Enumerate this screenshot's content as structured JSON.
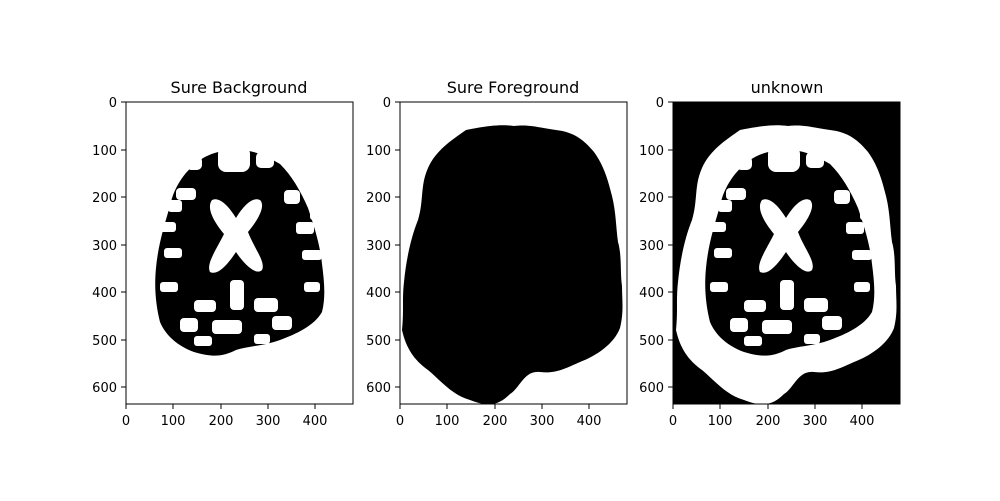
{
  "chart_data": [
    {
      "type": "image",
      "title": "Sure Background",
      "xticks": [
        0,
        100,
        200,
        300,
        400
      ],
      "yticks": [
        0,
        100,
        200,
        300,
        400,
        500,
        600
      ],
      "xlim": [
        0,
        480
      ],
      "ylim": [
        640,
        0
      ],
      "background_color": "#ffffff",
      "mask_color": "#000000",
      "description": "binary mask: white background with black brain region and white internal structures"
    },
    {
      "type": "image",
      "title": "Sure Foreground",
      "xticks": [
        0,
        100,
        200,
        300,
        400
      ],
      "yticks": [
        0,
        100,
        200,
        300,
        400,
        500,
        600
      ],
      "xlim": [
        0,
        480
      ],
      "ylim": [
        640,
        0
      ],
      "background_color": "#ffffff",
      "mask_color": "#000000",
      "description": "binary mask: solid black head shape on white background"
    },
    {
      "type": "image",
      "title": "unknown",
      "xticks": [
        0,
        100,
        200,
        300,
        400
      ],
      "yticks": [
        0,
        100,
        200,
        300,
        400,
        500,
        600
      ],
      "xlim": [
        0,
        480
      ],
      "ylim": [
        640,
        0
      ],
      "background_color": "#000000",
      "mask_color": "#ffffff",
      "description": "binary mask: white ring around head outline plus white internal structures on black"
    }
  ]
}
